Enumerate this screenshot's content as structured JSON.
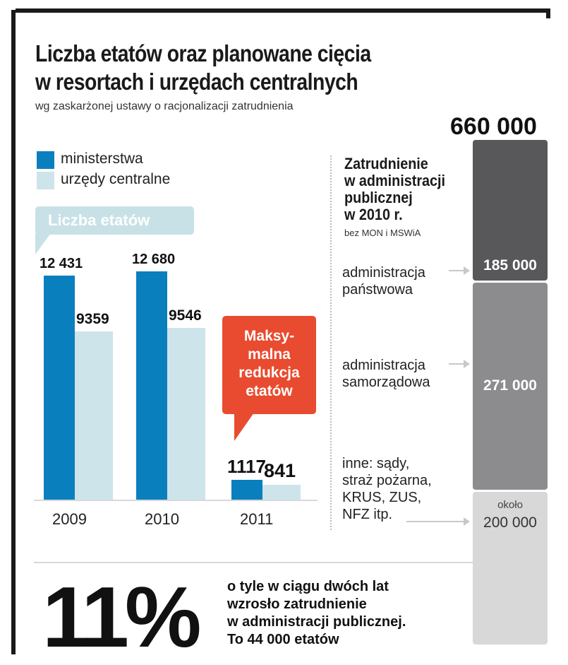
{
  "title_line1": "Liczba etatów oraz planowane cięcia",
  "title_line2": "w resortach i urzędach centralnych",
  "subtitle": "wg zaskarżonej ustawy o racjonalizacji zatrudnienia",
  "colors": {
    "ministerstwa": "#0a7fbe",
    "urzedy": "#cde4ea",
    "red": "#e84b2f",
    "seg_dark": "#58585a",
    "seg_mid": "#8c8c8e",
    "seg_light": "#d8d8d8"
  },
  "chart_data": [
    {
      "type": "bar",
      "title": "Liczba etatów",
      "categories": [
        "2009",
        "2010",
        "2011"
      ],
      "series": [
        {
          "name": "ministerstwa",
          "values": [
            12431,
            12680,
            1117
          ],
          "labels": [
            "12 431",
            "12 680",
            "1117"
          ]
        },
        {
          "name": "urzędy centralne",
          "values": [
            9359,
            9546,
            841
          ],
          "labels": [
            "9359",
            "9546",
            "841"
          ]
        }
      ],
      "ylim": [
        0,
        13000
      ],
      "annotation": "Maksy- malna redukcja etatów"
    },
    {
      "type": "bar",
      "title": "Zatrudnienie w administracji publicznej w 2010 r.",
      "note": "bez MON i MSWiA",
      "total_label": "660 000",
      "total": 660000,
      "segments": [
        {
          "name": "administracja państwowa",
          "value": 185000,
          "label": "185 000"
        },
        {
          "name": "administracja samorządowa",
          "value": 271000,
          "label": "271 000"
        },
        {
          "name": "inne: sądy, straż pożarna, KRUS, ZUS, NFZ itp.",
          "value": 200000,
          "label": "200 000",
          "prefix": "około"
        }
      ]
    }
  ],
  "legend": {
    "ministerstwa": "ministerstwa",
    "urzedy": "urzędy centralne"
  },
  "badge_label": "Liczba etatów",
  "red_badge": [
    "Maksy-",
    "malna",
    "redukcja",
    "etatów"
  ],
  "side": {
    "title": [
      "Zatrudnienie",
      "w administracji",
      "publicznej",
      "w 2010 r."
    ],
    "note": "bez MON i MSWiA",
    "panstwowa": [
      "administracja",
      "państwowa"
    ],
    "samorzadowa": [
      "administracja",
      "samorządowa"
    ],
    "inne": [
      "inne: sądy,",
      "straż pożarna,",
      "KRUS, ZUS,",
      "NFZ itp."
    ]
  },
  "bottom": {
    "percent": "11%",
    "lines": [
      "o tyle w ciągu dwóch lat",
      "wzrosło zatrudnienie",
      "w administracji publicznej.",
      "To 44 000 etatów"
    ]
  }
}
